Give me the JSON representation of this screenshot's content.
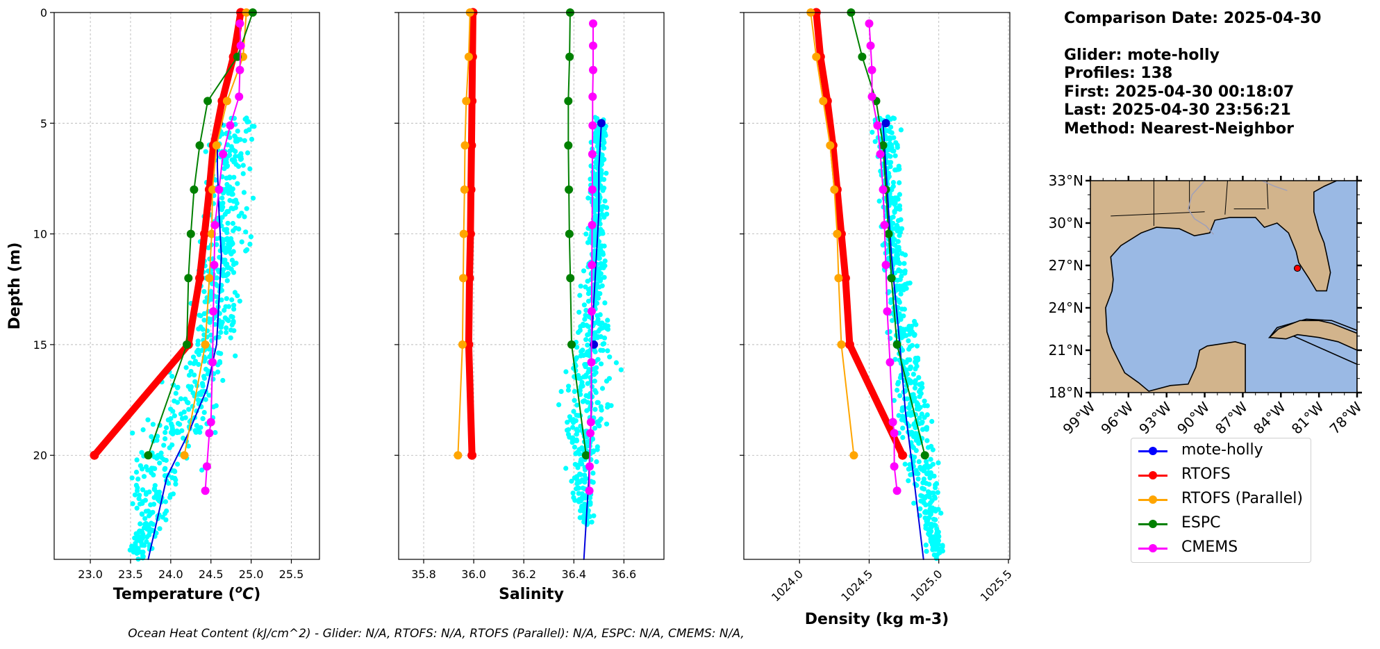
{
  "colors": {
    "glider_scatter": "#00ffff",
    "map_land": "#d2b48c",
    "map_ocean": "#9ab9e4",
    "glider_marker": "#ff0000"
  },
  "chart_data": [
    {
      "type": "line",
      "xlabel": "Temperature (°C)",
      "ylabel": "Depth (m)",
      "xlim": [
        22.55,
        25.85
      ],
      "ylim": [
        24.7,
        0
      ],
      "xticks": [
        23.0,
        23.5,
        24.0,
        24.5,
        25.0,
        25.5
      ],
      "xtick_labels": [
        "23.0",
        "23.5",
        "24.0",
        "24.5",
        "25.0",
        "25.5"
      ],
      "yticks": [
        0,
        5,
        10,
        15,
        20
      ],
      "ytick_labels": [
        "0",
        "5",
        "10",
        "15",
        "20"
      ],
      "grid": true,
      "scatter": {
        "name": "glider profiles",
        "color": "#00ffff",
        "depth_range": [
          4.7,
          24.7
        ],
        "x_center": [
          [
            5,
            24.75
          ],
          [
            10,
            24.7
          ],
          [
            15,
            24.5
          ],
          [
            18,
            24.2
          ],
          [
            20,
            23.9
          ],
          [
            24.5,
            23.6
          ]
        ],
        "x_spread": [
          [
            5,
            0.25
          ],
          [
            10,
            0.2
          ],
          [
            15,
            0.25
          ],
          [
            20,
            0.35
          ],
          [
            24.5,
            0.1
          ]
        ]
      },
      "series": [
        {
          "name": "mote-holly",
          "color": "#0000dd",
          "width": 2,
          "markers": false,
          "x": [
            24.58,
            24.58,
            24.6,
            24.63,
            24.6,
            24.57,
            24.45,
            24.22,
            23.95,
            23.72
          ],
          "y": [
            5,
            7,
            9,
            11,
            13,
            15,
            17,
            19,
            21,
            24.7
          ]
        },
        {
          "name": "mote-holly",
          "color": "#0000dd",
          "width": 0,
          "markers": true,
          "x": [
            24.6
          ],
          "y": [
            5
          ]
        },
        {
          "name": "RTOFS",
          "color": "#ff0000",
          "width": 10,
          "markers": true,
          "x": [
            24.87,
            24.78,
            24.64,
            24.53,
            24.48,
            24.42,
            24.36,
            24.22,
            23.05
          ],
          "y": [
            0,
            2,
            4,
            6,
            8,
            10,
            12,
            15,
            20
          ]
        },
        {
          "name": "RTOFS (Parallel)",
          "color": "#ffa500",
          "width": 2,
          "markers": true,
          "x": [
            24.94,
            24.9,
            24.7,
            24.57,
            24.52,
            24.51,
            24.48,
            24.43,
            24.17
          ],
          "y": [
            0,
            2,
            4,
            6,
            8,
            10,
            12,
            15,
            20
          ]
        },
        {
          "name": "ESPC",
          "color": "#008000",
          "width": 2,
          "markers": true,
          "x": [
            25.02,
            24.83,
            24.46,
            24.36,
            24.29,
            24.25,
            24.22,
            24.2,
            23.72
          ],
          "y": [
            0,
            2,
            4,
            6,
            8,
            10,
            12,
            15,
            20
          ]
        },
        {
          "name": "CMEMS",
          "color": "#ff00ff",
          "width": 2,
          "markers": true,
          "x": [
            24.86,
            24.87,
            24.86,
            24.85,
            24.74,
            24.65,
            24.6,
            24.55,
            24.54,
            24.53,
            24.52,
            24.5,
            24.48,
            24.45,
            24.43
          ],
          "y": [
            0.5,
            1.5,
            2.6,
            3.8,
            5.1,
            6.4,
            8,
            9.6,
            11.4,
            13.5,
            15.8,
            18.5,
            19,
            20.5,
            21.6
          ]
        }
      ]
    },
    {
      "type": "line",
      "xlabel": "Salinity",
      "xlim": [
        35.7,
        36.76
      ],
      "ylim": [
        24.7,
        0
      ],
      "xticks": [
        35.8,
        36.0,
        36.2,
        36.4,
        36.6
      ],
      "xtick_labels": [
        "35.8",
        "36.0",
        "36.2",
        "36.4",
        "36.6"
      ],
      "yticks": [
        0,
        5,
        10,
        15,
        20
      ],
      "ytick_labels": [],
      "grid": true,
      "scatter": {
        "name": "glider profiles",
        "color": "#00ffff",
        "depth_range": [
          4.7,
          23.2
        ],
        "x_center": [
          [
            5,
            36.5
          ],
          [
            10,
            36.49
          ],
          [
            15,
            36.47
          ],
          [
            18,
            36.45
          ],
          [
            21,
            36.43
          ],
          [
            23,
            36.45
          ]
        ],
        "x_spread": [
          [
            5,
            0.02
          ],
          [
            12,
            0.03
          ],
          [
            16,
            0.07
          ],
          [
            20,
            0.05
          ],
          [
            23,
            0.02
          ]
        ]
      },
      "series": [
        {
          "name": "mote-holly",
          "color": "#0000dd",
          "width": 2,
          "markers": false,
          "x": [
            36.51,
            36.5,
            36.5,
            36.49,
            36.48,
            36.47,
            36.47,
            36.46,
            36.44
          ],
          "y": [
            5,
            7,
            9,
            11,
            13,
            15,
            18,
            21,
            24.7
          ]
        },
        {
          "name": "mote-holly",
          "color": "#0000dd",
          "width": 0,
          "markers": true,
          "x": [
            36.51,
            36.48
          ],
          "y": [
            5,
            15
          ]
        },
        {
          "name": "RTOFS",
          "color": "#ff0000",
          "width": 10,
          "markers": true,
          "x": [
            35.997,
            35.995,
            35.993,
            35.991,
            35.989,
            35.987,
            35.983,
            35.98,
            35.993
          ],
          "y": [
            0,
            2,
            4,
            6,
            8,
            10,
            12,
            15,
            20
          ]
        },
        {
          "name": "RTOFS (Parallel)",
          "color": "#ffa500",
          "width": 2,
          "markers": true,
          "x": [
            35.985,
            35.98,
            35.97,
            35.965,
            35.963,
            35.96,
            35.958,
            35.955,
            35.937
          ],
          "y": [
            0,
            2,
            4,
            6,
            8,
            10,
            12,
            15,
            20
          ]
        },
        {
          "name": "ESPC",
          "color": "#008000",
          "width": 2,
          "markers": true,
          "x": [
            36.385,
            36.383,
            36.378,
            36.378,
            36.38,
            36.382,
            36.386,
            36.391,
            36.449
          ],
          "y": [
            0,
            2,
            4,
            6,
            8,
            10,
            12,
            15,
            20
          ]
        },
        {
          "name": "CMEMS",
          "color": "#ff00ff",
          "width": 2,
          "markers": true,
          "x": [
            36.477,
            36.477,
            36.477,
            36.475,
            36.475,
            36.474,
            36.474,
            36.473,
            36.472,
            36.471,
            36.47,
            36.468,
            36.466,
            36.463,
            36.462
          ],
          "y": [
            0.5,
            1.5,
            2.6,
            3.8,
            5.1,
            6.4,
            8,
            9.6,
            11.4,
            13.5,
            15.8,
            18.5,
            19,
            20.5,
            21.6
          ]
        }
      ]
    },
    {
      "type": "line",
      "xlabel": "Density (kg m-3)",
      "xlim": [
        1023.6,
        1025.51
      ],
      "ylim": [
        24.7,
        0
      ],
      "xticks": [
        1024.0,
        1024.5,
        1025.0,
        1025.5
      ],
      "xtick_labels": [
        "1024.0",
        "1024.5",
        "1025.0",
        "1025.5"
      ],
      "yticks": [
        0,
        5,
        10,
        15,
        20
      ],
      "ytick_labels": [],
      "grid": true,
      "scatter": {
        "name": "glider profiles",
        "color": "#00ffff",
        "depth_range": [
          4.7,
          24.7
        ],
        "x_center": [
          [
            5,
            1024.63
          ],
          [
            10,
            1024.66
          ],
          [
            15,
            1024.75
          ],
          [
            20,
            1024.86
          ],
          [
            24.5,
            1024.98
          ]
        ],
        "x_spread": [
          [
            5,
            0.07
          ],
          [
            10,
            0.06
          ],
          [
            15,
            0.09
          ],
          [
            20,
            0.09
          ],
          [
            24.5,
            0.04
          ]
        ]
      },
      "series": [
        {
          "name": "mote-holly",
          "color": "#0000dd",
          "width": 2,
          "markers": false,
          "x": [
            1024.6,
            1024.62,
            1024.64,
            1024.66,
            1024.69,
            1024.72,
            1024.76,
            1024.82,
            1024.89
          ],
          "y": [
            5,
            7,
            9,
            11,
            13,
            15,
            18,
            21,
            24.7
          ]
        },
        {
          "name": "mote-holly",
          "color": "#0000dd",
          "width": 0,
          "markers": true,
          "x": [
            1024.62
          ],
          "y": [
            5
          ]
        },
        {
          "name": "RTOFS",
          "color": "#ff0000",
          "width": 10,
          "markers": true,
          "x": [
            1024.12,
            1024.15,
            1024.2,
            1024.24,
            1024.27,
            1024.3,
            1024.33,
            1024.36,
            1024.74
          ],
          "y": [
            0,
            2,
            4,
            6,
            8,
            10,
            12,
            15,
            20
          ]
        },
        {
          "name": "RTOFS (Parallel)",
          "color": "#ffa500",
          "width": 2,
          "markers": true,
          "x": [
            1024.08,
            1024.12,
            1024.17,
            1024.22,
            1024.25,
            1024.27,
            1024.28,
            1024.3,
            1024.39
          ],
          "y": [
            0,
            2,
            4,
            6,
            8,
            10,
            12,
            15,
            20
          ]
        },
        {
          "name": "ESPC",
          "color": "#008000",
          "width": 2,
          "markers": true,
          "x": [
            1024.37,
            1024.45,
            1024.55,
            1024.6,
            1024.62,
            1024.64,
            1024.66,
            1024.7,
            1024.9
          ],
          "y": [
            0,
            2,
            4,
            6,
            8,
            10,
            12,
            15,
            20
          ]
        },
        {
          "name": "CMEMS",
          "color": "#ff00ff",
          "width": 2,
          "markers": true,
          "x": [
            1024.5,
            1024.51,
            1024.52,
            1024.52,
            1024.56,
            1024.58,
            1024.6,
            1024.61,
            1024.62,
            1024.63,
            1024.65,
            1024.67,
            1024.68,
            1024.68,
            1024.7
          ],
          "y": [
            0.5,
            1.5,
            2.6,
            3.8,
            5.1,
            6.4,
            8,
            9.6,
            11.4,
            13.5,
            15.8,
            18.5,
            19,
            20.5,
            21.6
          ]
        }
      ]
    }
  ],
  "map": {
    "lat_ticks": [
      "33°N",
      "30°N",
      "27°N",
      "24°N",
      "21°N",
      "18°N"
    ],
    "lon_ticks": [
      "99°W",
      "96°W",
      "93°W",
      "90°W",
      "87°W",
      "84°W",
      "81°W",
      "78°W"
    ],
    "glider_location": {
      "lat": 26.8,
      "lon": -82.7
    }
  },
  "info": {
    "comparison_date": "Comparison Date: 2025-04-30",
    "glider": "Glider: mote-holly",
    "profiles": "Profiles: 138",
    "first": "First: 2025-04-30 00:18:07",
    "last": "Last: 2025-04-30 23:56:21",
    "method": "Method: Nearest-Neighbor"
  },
  "legend": [
    {
      "label": "mote-holly",
      "color": "#0000ff"
    },
    {
      "label": "RTOFS",
      "color": "#ff0000"
    },
    {
      "label": "RTOFS (Parallel)",
      "color": "#ffa500"
    },
    {
      "label": "ESPC",
      "color": "#008000"
    },
    {
      "label": "CMEMS",
      "color": "#ff00ff"
    }
  ],
  "footer": "Ocean Heat Content (kJ/cm^2) - Glider: N/A,  RTOFS: N/A,  RTOFS (Parallel): N/A,  ESPC: N/A,  CMEMS: N/A,"
}
